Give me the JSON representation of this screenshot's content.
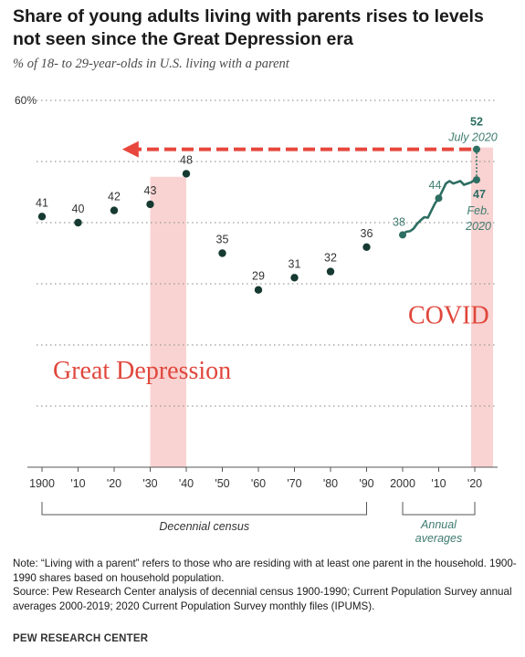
{
  "header": {
    "title": "Share of young adults living with parents rises to levels not seen since the Great Depression era",
    "subtitle": "% of 18- to 29-year-olds in U.S. living with a parent"
  },
  "chart_data": {
    "type": "scatter",
    "title": "Share of young adults living with parents rises to levels not seen since the Great Depression era",
    "subtitle": "% of 18- to 29-year-olds in U.S. living with a parent",
    "ylim": [
      0,
      60
    ],
    "xlim": [
      1900,
      2020
    ],
    "y_tick_label": "60%",
    "x_tick_labels": [
      "1900",
      "'10",
      "'20",
      "'30",
      "'40",
      "'50",
      "'60",
      "'70",
      "'80",
      "'90",
      "2000",
      "'10",
      "'20"
    ],
    "x_ticks": [
      1900,
      1910,
      1920,
      1930,
      1940,
      1950,
      1960,
      1970,
      1980,
      1990,
      2000,
      2010,
      2020
    ],
    "grid": "horizontal dotted",
    "series": [
      {
        "name": "Decennial census",
        "points": [
          {
            "x": 1900,
            "y": 41,
            "label": "41"
          },
          {
            "x": 1910,
            "y": 40,
            "label": "40"
          },
          {
            "x": 1920,
            "y": 42,
            "label": "42"
          },
          {
            "x": 1930,
            "y": 43,
            "label": "43"
          },
          {
            "x": 1940,
            "y": 48,
            "label": "48"
          },
          {
            "x": 1950,
            "y": 35,
            "label": "35"
          },
          {
            "x": 1960,
            "y": 29,
            "label": "29"
          },
          {
            "x": 1970,
            "y": 31,
            "label": "31"
          },
          {
            "x": 1980,
            "y": 32,
            "label": "32"
          },
          {
            "x": 1990,
            "y": 36,
            "label": "36"
          }
        ]
      },
      {
        "name": "Annual averages",
        "points": [
          {
            "x": 2000,
            "y": 38,
            "label": "38"
          },
          {
            "x": 2001,
            "y": 38.5
          },
          {
            "x": 2002,
            "y": 38.6
          },
          {
            "x": 2003,
            "y": 39
          },
          {
            "x": 2004,
            "y": 39.8
          },
          {
            "x": 2005,
            "y": 40.4
          },
          {
            "x": 2006,
            "y": 40.9
          },
          {
            "x": 2007,
            "y": 40.8
          },
          {
            "x": 2008,
            "y": 42
          },
          {
            "x": 2009,
            "y": 43.2
          },
          {
            "x": 2010,
            "y": 44,
            "label": "44"
          },
          {
            "x": 2011,
            "y": 45.2
          },
          {
            "x": 2012,
            "y": 46.4
          },
          {
            "x": 2013,
            "y": 46.8
          },
          {
            "x": 2014,
            "y": 46.4
          },
          {
            "x": 2015,
            "y": 46.6
          },
          {
            "x": 2016,
            "y": 46.8
          },
          {
            "x": 2017,
            "y": 46.2
          },
          {
            "x": 2018,
            "y": 46.4
          },
          {
            "x": 2019,
            "y": 46.6
          }
        ]
      }
    ],
    "highlights": [
      {
        "x": 2020,
        "y": 47,
        "label": "47",
        "sublabel": [
          "Feb.",
          "2020"
        ]
      },
      {
        "x": 2020,
        "y": 52,
        "label": "52",
        "sublabel": [
          "July 2020"
        ]
      }
    ],
    "shaded_periods": [
      {
        "x_start": 1930,
        "x_end": 1940,
        "label": "Great Depression"
      },
      {
        "x_start": 2020,
        "x_end": 2020,
        "label": "COVID"
      }
    ],
    "arrow": {
      "from_x": 2020,
      "to_x": 1923,
      "y": 52
    },
    "brackets": [
      {
        "x_start": 1900,
        "x_end": 1990,
        "label": "Decennial census"
      },
      {
        "x_start": 2000,
        "x_end": 2020,
        "label": "Annual averages"
      }
    ],
    "colors": {
      "census_dot": "#163a32",
      "annual_line": "#2d6e62",
      "annual_text": "#3e7b6f",
      "label_text": "#333333",
      "shade": "#f9d3d2",
      "arrow": "#e8473d",
      "annotation_red": "#e0473c",
      "grid": "#9a9a9a",
      "axis": "#555555"
    }
  },
  "footer": {
    "note": "Note: “Living with a parent” refers to those who are residing with at least one parent in the household. 1900-1990 shares based on household population.",
    "source": "Source: Pew Research Center analysis of decennial census 1900-1990; Current Population Survey annual averages 2000-2019; 2020 Current Population Survey monthly files (IPUMS).",
    "brand": "PEW RESEARCH CENTER"
  }
}
